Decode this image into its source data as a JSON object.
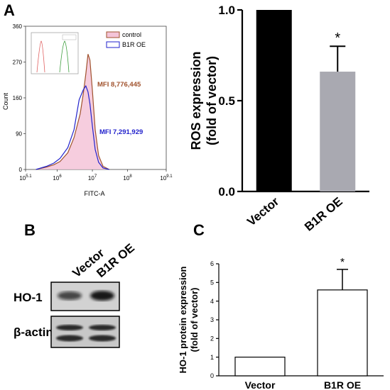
{
  "panels": {
    "A": "A",
    "B": "B",
    "C": "C"
  },
  "chart_data": [
    {
      "id": "flow_histogram",
      "type": "area",
      "xlabel": "FITC-A",
      "ylabel": "Count",
      "x_scale": "log",
      "xlim": [
        125893,
        1258925412
      ],
      "ylim": [
        0,
        360
      ],
      "x_tick_labels": [
        "10^5.1",
        "10^6",
        "10^7",
        "10^8",
        "10^9.1"
      ],
      "y_tick_labels": [
        "0",
        "90",
        "160",
        "270",
        "360"
      ],
      "legend": {
        "placement": "top-right",
        "entries": [
          "control",
          "B1R OE"
        ]
      },
      "series": [
        {
          "name": "control",
          "color": "#a0522d",
          "fill": "#f4c4d8",
          "x": [
            250000,
            500000,
            800000,
            1200000,
            2000000,
            3000000,
            4500000,
            5500000,
            6500000,
            7500000,
            8500000,
            10000000,
            12000000,
            15000000,
            20000000,
            30000000
          ],
          "y": [
            0,
            6,
            12,
            20,
            42,
            80,
            140,
            190,
            240,
            290,
            275,
            200,
            100,
            35,
            8,
            0
          ]
        },
        {
          "name": "B1R OE",
          "color": "#2222cc",
          "fill": "none",
          "x": [
            250000,
            500000,
            800000,
            1200000,
            2000000,
            3000000,
            4200000,
            5500000,
            6500000,
            7500000,
            8500000,
            10000000,
            12000000,
            15000000,
            20000000,
            30000000
          ],
          "y": [
            0,
            8,
            16,
            28,
            55,
            100,
            175,
            200,
            210,
            195,
            165,
            110,
            50,
            18,
            4,
            0
          ]
        }
      ],
      "annotations": [
        {
          "text": "MFI 8,776,445",
          "color": "#a0522d"
        },
        {
          "text": "MFI 7,291,929",
          "color": "#2222cc"
        }
      ]
    },
    {
      "id": "ros_bar",
      "type": "bar",
      "categories": [
        "Vector",
        "B1R OE"
      ],
      "values": [
        1.0,
        0.66
      ],
      "errors": [
        0,
        0.14
      ],
      "colors": [
        "#000000",
        "#a9a9b1"
      ],
      "ylabel": "ROS expression\n(fold of vector)",
      "ylim": [
        0,
        1.0
      ],
      "y_tick_labels": [
        "0.0",
        "0.5",
        "1.0"
      ],
      "significance": [
        "",
        "*"
      ]
    },
    {
      "id": "ho1_bar",
      "type": "bar",
      "categories": [
        "Vector",
        "B1R OE"
      ],
      "values": [
        1.0,
        4.6
      ],
      "errors": [
        0,
        1.1
      ],
      "colors": [
        "#ffffff",
        "#ffffff"
      ],
      "ylabel": "HO-1 protein expression\n(fold of vector)",
      "ylim": [
        0,
        6
      ],
      "y_tick_labels": [
        "0",
        "1",
        "2",
        "3",
        "4",
        "5",
        "6"
      ],
      "significance": [
        "",
        "*"
      ]
    }
  ],
  "blot": {
    "lanes": [
      "Vector",
      "B1R OE"
    ],
    "rows": [
      "HO-1",
      "β-actin"
    ],
    "band_intensity": [
      [
        0.55,
        1.0
      ],
      [
        1.0,
        1.0
      ]
    ]
  }
}
